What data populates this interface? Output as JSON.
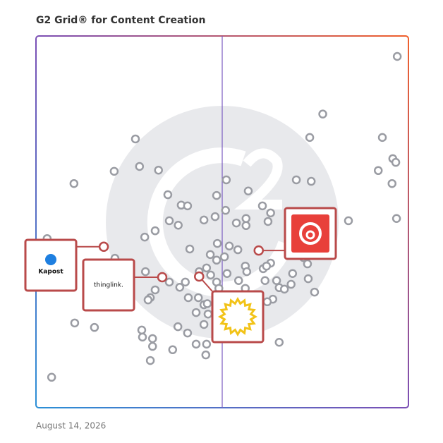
{
  "chart_data": {
    "type": "scatter",
    "title": "G2 Grid® for Content Creation",
    "date": "August 14, 2026",
    "xlim": [
      0,
      100
    ],
    "ylim": [
      0,
      100
    ],
    "color": "#9a9ca3",
    "highlight_color": "#b94a4a",
    "x": [
      97,
      77,
      73.5,
      93,
      95.8,
      96.6,
      91.9,
      95.6,
      96.8,
      83.9,
      26.7,
      21,
      27.8,
      32.9,
      10.2,
      51.1,
      69.9,
      73.9,
      35.4,
      48.5,
      57,
      39,
      40.7,
      50.9,
      60.8,
      63,
      35.8,
      38.2,
      45.1,
      48.1,
      53.8,
      56.4,
      56.4,
      62.3,
      32,
      29.2,
      3,
      41.3,
      48.7,
      51.9,
      54.2,
      46.8,
      50.6,
      48.5,
      63,
      61,
      61.9,
      56.2,
      71.8,
      72.9,
      21.2,
      29.4,
      43.8,
      45.8,
      46.9,
      51.3,
      56.6,
      68.9,
      73.1,
      61.5,
      64.6,
      48.5,
      54.4,
      65.3,
      66.7,
      68.5,
      74.8,
      38.6,
      35.8,
      32,
      40.1,
      49.1,
      56.2,
      30.7,
      30.1,
      40.9,
      43.6,
      45.1,
      63.6,
      62.1,
      43,
      10.4,
      15.7,
      38.1,
      45.1,
      28.4,
      40.7,
      28.6,
      31.3,
      43,
      45.8,
      31.3,
      36.7,
      65.3,
      45.6,
      30.7,
      4.2,
      46,
      46.2
    ],
    "values": [
      94.5,
      79,
      72.7,
      72.7,
      67,
      66,
      63.8,
      60.3,
      50.9,
      50.3,
      72.3,
      63.6,
      64.9,
      63.9,
      60.3,
      61.3,
      61.3,
      60.9,
      57.3,
      57.1,
      58.3,
      54.5,
      54.3,
      53.1,
      54.3,
      52.4,
      50.3,
      49.1,
      50.5,
      51.4,
      49.7,
      49,
      50.9,
      50.1,
      47.6,
      45.9,
      45.5,
      42.7,
      44.2,
      43.5,
      42.5,
      41.2,
      40.6,
      39.7,
      38.9,
      37.4,
      38.1,
      38.1,
      40.4,
      38.7,
      40.2,
      36.6,
      36.6,
      37.6,
      35.7,
      36.1,
      36.6,
      36.1,
      34.7,
      34.2,
      34.2,
      33.8,
      34.2,
      32.3,
      31.9,
      33.2,
      31.1,
      32.4,
      33.8,
      31.7,
      33.8,
      32.1,
      32.1,
      29.6,
      29,
      29.6,
      29.6,
      27.7,
      29.2,
      28.5,
      25.6,
      22.8,
      21.6,
      21.8,
      22.4,
      20.9,
      20.1,
      19,
      18.6,
      17.1,
      17.1,
      16.5,
      15.6,
      17.6,
      14.2,
      12.7,
      8.2,
      28,
      25.2
    ],
    "highlights": [
      {
        "label": "Kapost",
        "x": 18.2,
        "y": 43.3
      },
      {
        "label": "thinglink.",
        "x": 33.9,
        "y": 35.1
      },
      {
        "x": 59.8,
        "y": 42.3
      },
      {
        "x": 43.8,
        "y": 35.3
      }
    ]
  }
}
